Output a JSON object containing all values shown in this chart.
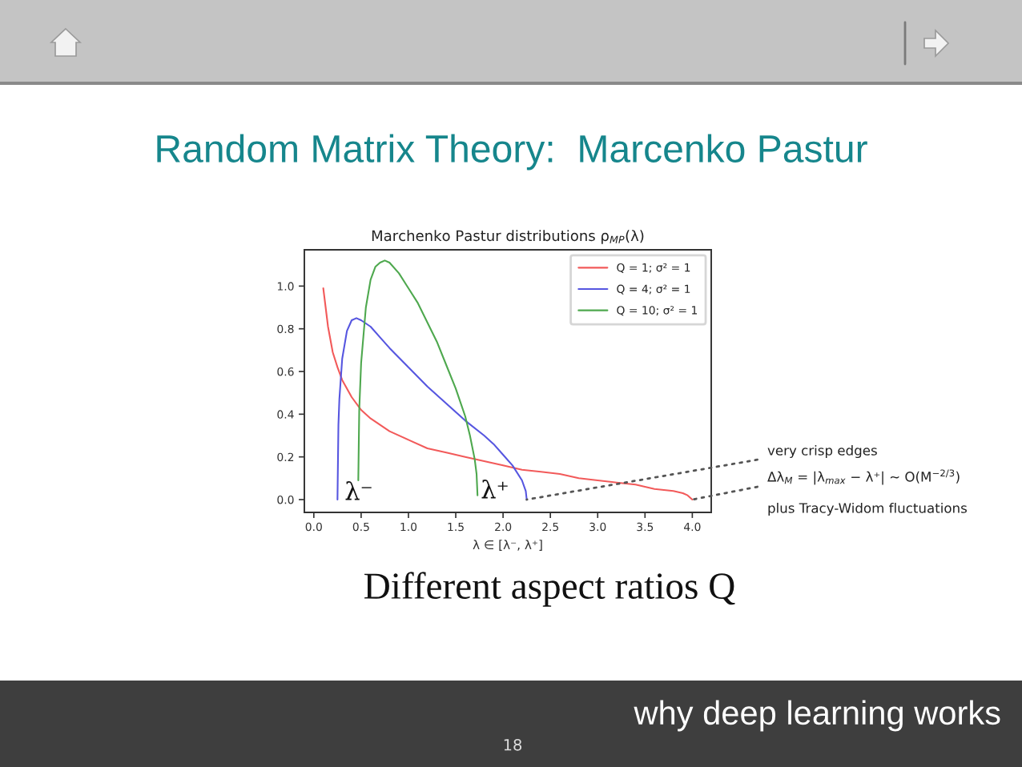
{
  "chart_data": {
    "type": "line",
    "title": "Random Matrix Theory:  Marcenko Pastur",
    "subtitle": "Marchenko Pastur distributions ρ$_{MP}$(λ)",
    "xlabel": "λ ∈ [λ⁻, λ⁺]",
    "xlim": [
      -0.1,
      4.2
    ],
    "xticks": [
      {
        "value": 0,
        "label": "0.0"
      },
      0.5,
      {
        "value": 1,
        "label": "1.0"
      },
      1.5,
      {
        "value": 2,
        "label": "2.0"
      },
      2.5,
      {
        "value": 3,
        "label": "3.0"
      },
      3.5,
      {
        "value": 4,
        "label": "4.0"
      }
    ],
    "ylim": [
      -0.06,
      1.17
    ],
    "yticks": [
      {
        "value": 0,
        "label": "0.0"
      },
      0.2,
      0.4,
      0.6,
      0.8,
      {
        "value": 1,
        "label": "1.0"
      }
    ],
    "legend": "top right",
    "marker": "none",
    "line_style": "solid",
    "series": [
      {
        "name": "Q = 1; σ² = 1",
        "color": "#f25a5a",
        "x": [
          0.1,
          0.15,
          0.2,
          0.25,
          0.3,
          0.4,
          0.5,
          0.6,
          0.7,
          0.8,
          1.0,
          1.2,
          1.4,
          1.6,
          1.8,
          2.0,
          2.2,
          2.4,
          2.6,
          2.8,
          3.0,
          3.2,
          3.4,
          3.6,
          3.8,
          3.9,
          3.95,
          4.0
        ],
        "values": [
          0.99,
          0.81,
          0.69,
          0.62,
          0.56,
          0.48,
          0.42,
          0.38,
          0.35,
          0.32,
          0.28,
          0.24,
          0.22,
          0.2,
          0.18,
          0.16,
          0.14,
          0.13,
          0.12,
          0.1,
          0.09,
          0.08,
          0.07,
          0.05,
          0.04,
          0.03,
          0.02,
          0.0
        ]
      },
      {
        "name": "Q = 4; σ² = 1",
        "color": "#5656e0",
        "x": [
          0.25,
          0.26,
          0.27,
          0.3,
          0.35,
          0.4,
          0.45,
          0.5,
          0.6,
          0.7,
          0.8,
          1.0,
          1.2,
          1.4,
          1.6,
          1.8,
          1.9,
          2.0,
          2.1,
          2.2,
          2.24,
          2.25
        ],
        "values": [
          0.0,
          0.35,
          0.47,
          0.66,
          0.79,
          0.84,
          0.85,
          0.84,
          0.81,
          0.76,
          0.71,
          0.62,
          0.53,
          0.45,
          0.37,
          0.3,
          0.26,
          0.21,
          0.16,
          0.09,
          0.04,
          0.0
        ]
      },
      {
        "name": "Q = 10; σ² = 1",
        "color": "#4ea84e",
        "x": [
          0.47,
          0.48,
          0.5,
          0.55,
          0.6,
          0.65,
          0.7,
          0.75,
          0.8,
          0.9,
          1.0,
          1.1,
          1.2,
          1.3,
          1.4,
          1.5,
          1.6,
          1.65,
          1.7,
          1.72,
          1.73
        ],
        "values": [
          0.09,
          0.42,
          0.64,
          0.9,
          1.03,
          1.09,
          1.11,
          1.12,
          1.11,
          1.06,
          0.99,
          0.92,
          0.83,
          0.74,
          0.63,
          0.52,
          0.39,
          0.3,
          0.19,
          0.12,
          0.02
        ]
      }
    ],
    "annotations": [
      "λ⁻",
      "λ⁺",
      "Different aspect ratios Q",
      {
        "text": "very crisp edges",
        "x": 2.25,
        "y": 0
      },
      {
        "text": "Δλ$_{M}$ = |λ$_{max}$ − λ⁺| ∼ O(M$^{−2/3}$)",
        "x": 4.0,
        "y": 0
      },
      "plus Tracy-Widom fluctuations",
      "why deep learning works",
      "18"
    ]
  }
}
